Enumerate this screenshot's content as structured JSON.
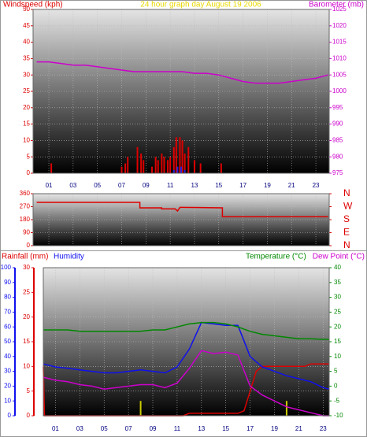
{
  "chart_data": [
    {
      "type": "combo",
      "title": "24 hour graph day   August 19 2006",
      "title_color": "#e8d800",
      "xlim": [
        -0.3,
        24.1
      ],
      "xticks": [
        {
          "value": 1,
          "label": "01"
        },
        {
          "value": 3,
          "label": "03"
        },
        {
          "value": 5,
          "label": "05"
        },
        {
          "value": 7,
          "label": "07"
        },
        {
          "value": 9,
          "label": "09"
        },
        {
          "value": 11,
          "label": "11"
        },
        {
          "value": 13,
          "label": "13"
        },
        {
          "value": 15,
          "label": "15"
        },
        {
          "value": 17,
          "label": "17"
        },
        {
          "value": 19,
          "label": "19"
        },
        {
          "value": 21,
          "label": "21"
        },
        {
          "value": 23,
          "label": "23"
        }
      ],
      "ylim": [
        0,
        50
      ],
      "yticks": [
        0,
        5,
        10,
        15,
        20,
        25,
        30,
        35,
        40,
        45,
        50
      ],
      "ycolor": "#dd0000",
      "y2lim": [
        975,
        1025
      ],
      "y2ticks": [
        975,
        980,
        985,
        990,
        995,
        1000,
        1005,
        1010,
        1015,
        1020,
        1025
      ],
      "y2color": "#cc00cc",
      "grid": true,
      "series": [
        {
          "name": "Windspeed (kph)",
          "type": "bar",
          "color": "#dd0000",
          "x": [
            1.2,
            7.0,
            7.3,
            7.5,
            8.3,
            8.6,
            8.8,
            9.5,
            9.8,
            10.0,
            10.3,
            10.5,
            10.8,
            11.0,
            11.3,
            11.5,
            11.8,
            12.0,
            12.2,
            12.5,
            13.0,
            13.5,
            15.2
          ],
          "values": [
            3,
            2,
            3,
            5,
            8,
            6,
            4,
            2,
            5,
            4,
            6,
            5,
            4,
            5,
            8,
            11,
            11,
            10,
            6,
            8,
            4,
            3,
            3
          ]
        },
        {
          "type": "bar",
          "color": "#2222dd",
          "x": [
            11.3,
            11.6,
            11.9,
            12.2
          ],
          "values": [
            1,
            2,
            2,
            1
          ]
        },
        {
          "name": "Barometer (mb)",
          "type": "line",
          "axis": "y2",
          "color": "#cc00cc",
          "x": [
            0,
            1,
            2,
            3,
            4,
            5,
            6,
            7,
            8,
            9,
            10,
            11,
            12,
            13,
            14,
            15,
            16,
            17,
            18,
            19,
            20,
            21,
            22,
            23,
            24
          ],
          "values": [
            1009,
            1009,
            1008.5,
            1008,
            1008,
            1007.5,
            1007,
            1006.5,
            1006,
            1006,
            1006,
            1006,
            1006,
            1005.5,
            1005.5,
            1005,
            1004,
            1003,
            1002.5,
            1002.5,
            1002.5,
            1003,
            1003.5,
            1004,
            1005
          ]
        }
      ]
    },
    {
      "type": "combo",
      "xlim": [
        -0.3,
        24.1
      ],
      "ylim": [
        0,
        360
      ],
      "yticks": [
        0,
        90,
        180,
        270,
        360
      ],
      "ycolor": "#dd0000",
      "y2lim": [
        0,
        360
      ],
      "y2ticks": [
        {
          "value": 0,
          "label": "N"
        },
        {
          "value": 90,
          "label": "E"
        },
        {
          "value": 180,
          "label": "S"
        },
        {
          "value": 270,
          "label": "W"
        },
        {
          "value": 360,
          "label": "N"
        }
      ],
      "y2color": "#dd0000",
      "grid": true,
      "series": [
        {
          "type": "line",
          "color": "#dd0000",
          "x": [
            0,
            8.5,
            8.5,
            10.3,
            10.3,
            11.4,
            11.6,
            11.8,
            12.0,
            15.3,
            15.3,
            24
          ],
          "values": [
            300,
            300,
            262,
            262,
            255,
            255,
            240,
            265,
            265,
            262,
            200,
            200
          ]
        }
      ]
    },
    {
      "type": "combo",
      "xlim": [
        0,
        23.5
      ],
      "xticks": [
        {
          "value": 1,
          "label": "01"
        },
        {
          "value": 3,
          "label": "03"
        },
        {
          "value": 5,
          "label": "05"
        },
        {
          "value": 7,
          "label": "07"
        },
        {
          "value": 9,
          "label": "09"
        },
        {
          "value": 11,
          "label": "11"
        },
        {
          "value": 13,
          "label": "13"
        },
        {
          "value": 15,
          "label": "15"
        },
        {
          "value": 17,
          "label": "17"
        },
        {
          "value": 19,
          "label": "19"
        },
        {
          "value": 21,
          "label": "21"
        },
        {
          "value": 23,
          "label": "23"
        }
      ],
      "ylim": [
        0,
        30
      ],
      "yticks": [
        0,
        5,
        10,
        15,
        20,
        25,
        30
      ],
      "ycolor": "#dd0000",
      "y3lim": [
        0,
        100
      ],
      "y3ticks": [
        0,
        10,
        20,
        30,
        40,
        50,
        60,
        70,
        80,
        90,
        100
      ],
      "y3color": "#1010ee",
      "y2lim": [
        -10,
        40
      ],
      "y2ticks": [
        -10,
        -5,
        0,
        5,
        10,
        15,
        20,
        25,
        30,
        35,
        40
      ],
      "y2color": "#008800",
      "grid": true,
      "series": [
        {
          "type": "bar",
          "color": "#cccc00",
          "x": [
            8,
            20
          ],
          "values": [
            3,
            3
          ]
        },
        {
          "name": "Rainfall (mm)",
          "type": "line",
          "color": "#dd0000",
          "x": [
            0,
            0.1,
            11.5,
            12,
            16,
            16.5,
            17,
            17.5,
            18,
            20,
            21.5,
            22,
            23.5
          ],
          "values": [
            10,
            0,
            0,
            0.5,
            0.5,
            1,
            5,
            9,
            10,
            10,
            10,
            10.5,
            10.5
          ]
        },
        {
          "name": "Humidity",
          "type": "line",
          "axis": "y3",
          "color": "#1010ee",
          "x": [
            0,
            1,
            2,
            3,
            4,
            5,
            6,
            7,
            8,
            9,
            10,
            11,
            12,
            13,
            14,
            15,
            16,
            17,
            18,
            19,
            20,
            21,
            22,
            23,
            23.5
          ],
          "values": [
            35,
            33,
            32,
            31,
            30,
            29,
            29,
            30,
            31,
            30,
            29,
            33,
            45,
            63,
            62,
            61,
            61,
            40,
            33,
            30,
            27,
            25,
            23,
            19,
            18
          ]
        },
        {
          "name": "Temperature (°C)",
          "type": "line",
          "axis": "y2",
          "color": "#008800",
          "x": [
            0,
            1,
            2,
            3,
            4,
            5,
            6,
            7,
            8,
            9,
            10,
            11,
            12,
            13,
            14,
            15,
            16,
            17,
            18,
            19,
            20,
            21,
            22,
            23,
            23.5
          ],
          "values": [
            19,
            19,
            19,
            18.5,
            18.5,
            18.5,
            18.5,
            18.5,
            18.5,
            19,
            19,
            20,
            21,
            21.5,
            21.5,
            21,
            20,
            18.5,
            17.5,
            17,
            16.5,
            16,
            16,
            15.8,
            15.8
          ]
        },
        {
          "name": "Dew Point (°C)",
          "type": "line",
          "axis": "y2",
          "color": "#cc00cc",
          "x": [
            0,
            1,
            2,
            3,
            4,
            5,
            6,
            7,
            8,
            9,
            10,
            11,
            12,
            13,
            14,
            15,
            16,
            17,
            18,
            19,
            20,
            21,
            22,
            23,
            23.5
          ],
          "values": [
            3,
            2,
            1.5,
            0.5,
            0,
            -1,
            -0.5,
            0,
            0.5,
            0.5,
            -0.5,
            1,
            6,
            12,
            11,
            11.5,
            10.5,
            0,
            -3,
            -5,
            -7,
            -8,
            -9,
            -10,
            -10
          ]
        }
      ]
    }
  ]
}
